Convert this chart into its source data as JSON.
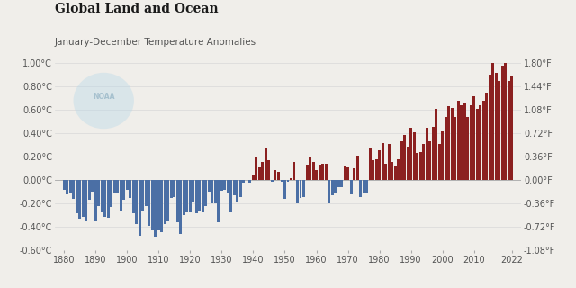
{
  "title": "Global Land and Ocean",
  "subtitle": "January-December Temperature Anomalies",
  "years": [
    1880,
    1881,
    1882,
    1883,
    1884,
    1885,
    1886,
    1887,
    1888,
    1889,
    1890,
    1891,
    1892,
    1893,
    1894,
    1895,
    1896,
    1897,
    1898,
    1899,
    1900,
    1901,
    1902,
    1903,
    1904,
    1905,
    1906,
    1907,
    1908,
    1909,
    1910,
    1911,
    1912,
    1913,
    1914,
    1915,
    1916,
    1917,
    1918,
    1919,
    1920,
    1921,
    1922,
    1923,
    1924,
    1925,
    1926,
    1927,
    1928,
    1929,
    1930,
    1931,
    1932,
    1933,
    1934,
    1935,
    1936,
    1937,
    1938,
    1939,
    1940,
    1941,
    1942,
    1943,
    1944,
    1945,
    1946,
    1947,
    1948,
    1949,
    1950,
    1951,
    1952,
    1953,
    1954,
    1955,
    1956,
    1957,
    1958,
    1959,
    1960,
    1961,
    1962,
    1963,
    1964,
    1965,
    1966,
    1967,
    1968,
    1969,
    1970,
    1971,
    1972,
    1973,
    1974,
    1975,
    1976,
    1977,
    1978,
    1979,
    1980,
    1981,
    1982,
    1983,
    1984,
    1985,
    1986,
    1987,
    1988,
    1989,
    1990,
    1991,
    1992,
    1993,
    1994,
    1995,
    1996,
    1997,
    1998,
    1999,
    2000,
    2001,
    2002,
    2003,
    2004,
    2005,
    2006,
    2007,
    2008,
    2009,
    2010,
    2011,
    2012,
    2013,
    2014,
    2015,
    2016,
    2017,
    2018,
    2019,
    2020,
    2021,
    2022
  ],
  "anomalies": [
    -0.08,
    -0.12,
    -0.11,
    -0.16,
    -0.28,
    -0.33,
    -0.31,
    -0.35,
    -0.17,
    -0.1,
    -0.35,
    -0.22,
    -0.27,
    -0.31,
    -0.32,
    -0.23,
    -0.11,
    -0.11,
    -0.26,
    -0.17,
    -0.08,
    -0.15,
    -0.28,
    -0.37,
    -0.47,
    -0.26,
    -0.22,
    -0.39,
    -0.43,
    -0.48,
    -0.43,
    -0.44,
    -0.37,
    -0.35,
    -0.15,
    -0.14,
    -0.36,
    -0.46,
    -0.3,
    -0.27,
    -0.27,
    -0.19,
    -0.28,
    -0.26,
    -0.27,
    -0.22,
    -0.1,
    -0.2,
    -0.2,
    -0.36,
    -0.09,
    -0.08,
    -0.11,
    -0.27,
    -0.13,
    -0.19,
    -0.14,
    -0.02,
    -0.0,
    -0.02,
    0.05,
    0.2,
    0.11,
    0.16,
    0.27,
    0.17,
    -0.01,
    0.09,
    0.07,
    -0.01,
    -0.16,
    -0.01,
    0.02,
    0.16,
    -0.2,
    -0.15,
    -0.14,
    0.13,
    0.2,
    0.16,
    0.09,
    0.13,
    0.14,
    0.14,
    -0.2,
    -0.13,
    -0.11,
    -0.06,
    -0.06,
    0.12,
    0.11,
    -0.12,
    0.1,
    0.21,
    -0.14,
    -0.11,
    -0.11,
    0.27,
    0.17,
    0.18,
    0.26,
    0.32,
    0.14,
    0.31,
    0.16,
    0.12,
    0.18,
    0.33,
    0.39,
    0.29,
    0.45,
    0.41,
    0.23,
    0.24,
    0.31,
    0.45,
    0.33,
    0.46,
    0.61,
    0.31,
    0.42,
    0.54,
    0.63,
    0.62,
    0.54,
    0.68,
    0.64,
    0.66,
    0.54,
    0.64,
    0.72,
    0.61,
    0.64,
    0.68,
    0.75,
    0.9,
    1.01,
    0.92,
    0.85,
    0.98,
    1.02,
    0.85,
    0.89
  ],
  "ylim_celsius": [
    -0.6,
    1.0
  ],
  "yticks_celsius": [
    -0.6,
    -0.4,
    -0.2,
    0.0,
    0.2,
    0.4,
    0.6,
    0.8,
    1.0
  ],
  "ytick_labels_celsius": [
    "-0.60°C",
    "-0.40°C",
    "-0.20°C",
    "0.00°C",
    "0.20°C",
    "0.40°C",
    "0.60°C",
    "0.80°C",
    "1.00°C"
  ],
  "yticks_fahrenheit": [
    -1.08,
    -0.72,
    -0.36,
    0.0,
    0.36,
    0.72,
    1.08,
    1.44,
    1.8
  ],
  "ytick_labels_fahrenheit": [
    "-1.08°F",
    "-0.72°F",
    "-0.36°F",
    "0.00°F",
    "0.36°F",
    "0.72°F",
    "1.08°F",
    "1.44°F",
    "1.80°F"
  ],
  "xticks": [
    1880,
    1890,
    1900,
    1910,
    1920,
    1930,
    1940,
    1950,
    1960,
    1970,
    1980,
    1990,
    2000,
    2010,
    2022
  ],
  "color_positive": "#8B2020",
  "color_negative": "#4B6FA5",
  "bg_color": "#f0eeea",
  "grid_color": "#d8d8d8",
  "bar_width": 0.85,
  "title_fontsize": 10,
  "subtitle_fontsize": 7.5,
  "tick_fontsize": 7,
  "noaa_logo_color": "#b8d8e8",
  "noaa_text_color": "#9ab8c8"
}
